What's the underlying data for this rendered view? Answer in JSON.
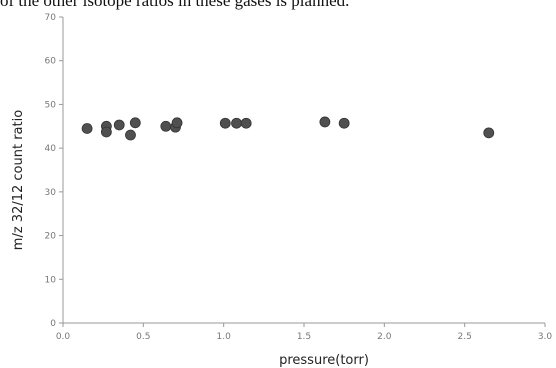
{
  "caption": {
    "text": "of the other isotope ratios in these gases is planned."
  },
  "chart_data": {
    "type": "scatter",
    "title": "",
    "xlabel": "pressure(torr)",
    "ylabel": "m/z 32/12 count ratio",
    "xlim": [
      0.0,
      3.0
    ],
    "ylim": [
      0,
      70
    ],
    "x_ticks": [
      0.0,
      0.5,
      1.0,
      1.5,
      2.0,
      2.5,
      3.0
    ],
    "x_tick_labels": [
      "0.0",
      "0.5",
      "1.0",
      "1.5",
      "2.0",
      "2.5",
      "3.0"
    ],
    "y_ticks": [
      0,
      10,
      20,
      30,
      40,
      50,
      60,
      70
    ],
    "y_tick_labels": [
      "0",
      "10",
      "20",
      "30",
      "40",
      "50",
      "60",
      "70"
    ],
    "grid": false,
    "marker_color": "#505050",
    "points": [
      {
        "x": 0.15,
        "y": 44.5
      },
      {
        "x": 0.27,
        "y": 45.0
      },
      {
        "x": 0.27,
        "y": 43.7
      },
      {
        "x": 0.35,
        "y": 45.3
      },
      {
        "x": 0.42,
        "y": 43.0
      },
      {
        "x": 0.45,
        "y": 45.8
      },
      {
        "x": 0.64,
        "y": 45.0
      },
      {
        "x": 0.7,
        "y": 44.8
      },
      {
        "x": 0.71,
        "y": 45.8
      },
      {
        "x": 1.01,
        "y": 45.7
      },
      {
        "x": 1.08,
        "y": 45.7
      },
      {
        "x": 1.14,
        "y": 45.7
      },
      {
        "x": 1.63,
        "y": 46.0
      },
      {
        "x": 1.75,
        "y": 45.7
      },
      {
        "x": 2.65,
        "y": 43.5
      }
    ]
  }
}
